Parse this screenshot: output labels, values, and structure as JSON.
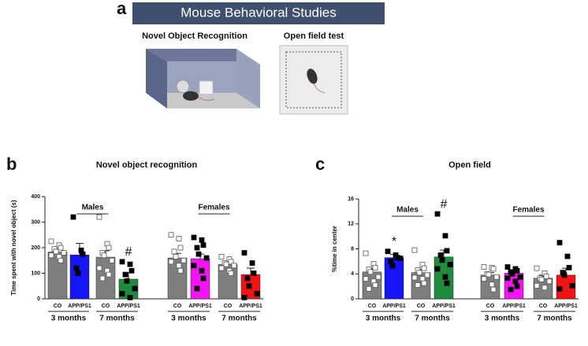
{
  "header": {
    "panel": "a",
    "title": "Mouse Behavioral Studies",
    "left_caption": "Novel Object Recognition",
    "right_caption": "Open field test"
  },
  "chart_data": [
    {
      "type": "bar",
      "panel": "b",
      "title": "Novel object recognition",
      "y_label": "Time spent with novel object (s)",
      "categories": [
        "CO",
        "APP/PS1",
        "CO",
        "APP/PS1",
        "CO",
        "APP/PS1",
        "CO",
        "APP/PS1"
      ],
      "values": [
        183,
        172,
        163,
        77,
        160,
        157,
        135,
        95
      ],
      "errors": [
        12,
        45,
        25,
        25,
        18,
        18,
        12,
        25
      ],
      "colors": [
        "#7f7f7f",
        "#1515f5",
        "#7f7f7f",
        "#1e8c3c",
        "#7f7f7f",
        "#f514f5",
        "#7f7f7f",
        "#f01414"
      ],
      "points": [
        [
          225,
          210,
          200,
          195,
          185,
          180,
          170,
          165,
          150
        ],
        [
          320,
          190,
          175,
          120,
          100
        ],
        [
          320,
          215,
          200,
          180,
          170,
          150,
          120,
          110,
          95,
          80
        ],
        [
          145,
          135,
          110,
          95,
          70,
          40,
          20,
          5
        ],
        [
          250,
          235,
          200,
          185,
          165,
          150,
          145,
          130,
          110
        ],
        [
          240,
          230,
          210,
          200,
          175,
          160,
          130,
          110,
          80,
          40
        ],
        [
          165,
          155,
          145,
          140,
          135,
          130,
          120,
          110,
          100
        ],
        [
          180,
          140,
          100,
          80,
          50,
          20,
          5
        ]
      ],
      "bar_annotations": [
        null,
        null,
        null,
        "#",
        null,
        null,
        null,
        null
      ],
      "sex_labels": [
        "Males",
        "Females"
      ],
      "age_labels": [
        "3 months",
        "7 months",
        "3 months",
        "7 months"
      ],
      "ylim": [
        0,
        400
      ],
      "yticks": [
        0,
        100,
        200,
        300,
        400
      ]
    },
    {
      "type": "bar",
      "panel": "c",
      "title": "Open field",
      "y_label": "%time in center",
      "categories": [
        "CO",
        "APP/PS1",
        "CO",
        "APP/PS1",
        "CO",
        "APP/PS1",
        "CO",
        "APP/PS1"
      ],
      "values": [
        4.3,
        6.6,
        4.2,
        6.7,
        3.8,
        4.1,
        3.3,
        3.8
      ],
      "errors": [
        0.6,
        0.5,
        0.5,
        1.1,
        0.4,
        0.4,
        0.5,
        1.1
      ],
      "colors": [
        "#7f7f7f",
        "#1515f5",
        "#7f7f7f",
        "#1e8c3c",
        "#7f7f7f",
        "#f514f5",
        "#7f7f7f",
        "#f01414"
      ],
      "points": [
        [
          7.3,
          5.6,
          5,
          4.7,
          4.3,
          3.5,
          3.2,
          2.8,
          2.2,
          1.6
        ],
        [
          7.6,
          7,
          6.6,
          6,
          5.3,
          6.5
        ],
        [
          7.8,
          5.5,
          4.9,
          4.6,
          4.2,
          3.8,
          3.4,
          3.2,
          2.5,
          2.2
        ],
        [
          13.6,
          10.1,
          7.7,
          7.0,
          6.2,
          5.5,
          4.8,
          3.5,
          2.5
        ],
        [
          5.1,
          5,
          4.8,
          4,
          3.9,
          3.5,
          3.2,
          2.3,
          1.5
        ],
        [
          5.1,
          4.8,
          4.5,
          4.3,
          4,
          3.5,
          3.3,
          2.8,
          2,
          1.5
        ],
        [
          4.9,
          4.1,
          3.6,
          3.3,
          3.1,
          2.8,
          2.1,
          1.8
        ],
        [
          9.0,
          6.8,
          5.0,
          4.2,
          3.8,
          2.1,
          1.6
        ]
      ],
      "bar_annotations": [
        null,
        "*",
        null,
        "#",
        null,
        null,
        null,
        null
      ],
      "sex_labels": [
        "Males",
        "Females"
      ],
      "age_labels": [
        "3 months",
        "7 months",
        "3 months",
        "7 months"
      ],
      "ylim": [
        0,
        16
      ],
      "yticks": [
        0,
        4,
        8,
        12,
        16
      ]
    }
  ]
}
